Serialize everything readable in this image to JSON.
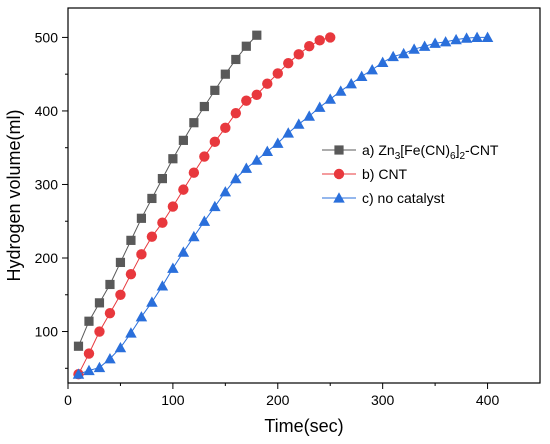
{
  "chart_data": {
    "type": "line",
    "xlabel": "Time(sec)",
    "ylabel": "Hydrogen volume(ml)",
    "xlim": [
      0,
      450
    ],
    "ylim": [
      30,
      540
    ],
    "x_ticks": [
      0,
      100,
      200,
      300,
      400
    ],
    "y_ticks": [
      100,
      200,
      300,
      400,
      500
    ],
    "x_minor_step": 50,
    "y_minor_step": 50,
    "grid": false,
    "legend_position": "center-right",
    "series": [
      {
        "name": "a) Zn3[Fe(CN)6]2-CNT",
        "legend_parts": [
          {
            "t": "a) Zn"
          },
          {
            "t": "3",
            "sub": true
          },
          {
            "t": "[Fe(CN)"
          },
          {
            "t": "6",
            "sub": true
          },
          {
            "t": "]"
          },
          {
            "t": "2",
            "sub": true
          },
          {
            "t": "-CNT"
          }
        ],
        "color": "#595959",
        "marker": "square",
        "x": [
          10,
          20,
          30,
          40,
          50,
          60,
          70,
          80,
          90,
          100,
          110,
          120,
          130,
          140,
          150,
          160,
          170,
          180
        ],
        "y": [
          80,
          114,
          139,
          164,
          194,
          224,
          254,
          281,
          308,
          335,
          360,
          384,
          406,
          428,
          450,
          470,
          488,
          503
        ]
      },
      {
        "name": "b) CNT",
        "legend_parts": [
          {
            "t": "b) CNT"
          }
        ],
        "color": "#e8383d",
        "marker": "circle",
        "x": [
          10,
          20,
          30,
          40,
          50,
          60,
          70,
          80,
          90,
          100,
          110,
          120,
          130,
          140,
          150,
          160,
          170,
          180,
          190,
          200,
          210,
          220,
          230,
          240,
          250
        ],
        "y": [
          42,
          70,
          100,
          125,
          150,
          178,
          205,
          229,
          248,
          270,
          293,
          316,
          338,
          358,
          377,
          397,
          414,
          422,
          437,
          451,
          465,
          477,
          488,
          496,
          500
        ]
      },
      {
        "name": "c) no catalyst",
        "legend_parts": [
          {
            "t": "c) no catalyst"
          }
        ],
        "color": "#2a6fdb",
        "marker": "triangle",
        "x": [
          10,
          20,
          30,
          40,
          50,
          60,
          70,
          80,
          90,
          100,
          110,
          120,
          130,
          140,
          150,
          160,
          170,
          180,
          190,
          200,
          210,
          220,
          230,
          240,
          250,
          260,
          270,
          280,
          290,
          300,
          310,
          320,
          330,
          340,
          350,
          360,
          370,
          380,
          390,
          400
        ],
        "y": [
          42,
          47,
          51,
          63,
          78,
          98,
          120,
          140,
          162,
          186,
          208,
          229,
          250,
          270,
          290,
          308,
          322,
          333,
          345,
          356,
          370,
          382,
          393,
          405,
          416,
          427,
          437,
          447,
          456,
          466,
          474,
          478,
          484,
          488,
          492,
          494,
          497,
          499,
          500,
          500
        ]
      }
    ]
  }
}
